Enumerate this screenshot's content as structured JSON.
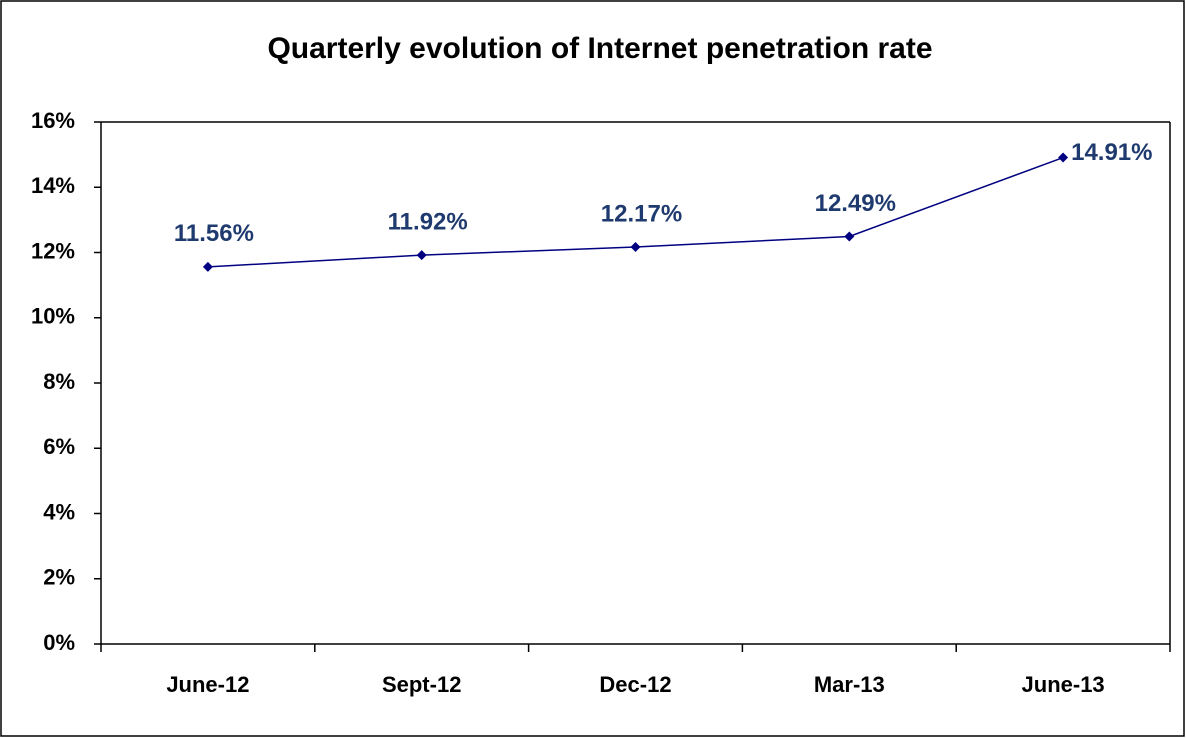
{
  "chart_data": {
    "type": "line",
    "title": "Quarterly evolution of Internet penetration rate",
    "categories": [
      "June-12",
      "Sept-12",
      "Dec-12",
      "Mar-13",
      "June-13"
    ],
    "series": [
      {
        "name": "Internet penetration rate",
        "color": "#000080",
        "values": [
          11.56,
          11.92,
          12.17,
          12.49,
          14.91
        ],
        "value_labels": [
          "11.56%",
          "11.92%",
          "12.17%",
          "12.49%",
          "14.91%"
        ]
      }
    ],
    "ylim": [
      0,
      16
    ],
    "yticks": [
      {
        "value": 0,
        "label": "0%"
      },
      {
        "value": 2,
        "label": "2%"
      },
      {
        "value": 4,
        "label": "4%"
      },
      {
        "value": 6,
        "label": "6%"
      },
      {
        "value": 8,
        "label": "8%"
      },
      {
        "value": 10,
        "label": "10%"
      },
      {
        "value": 12,
        "label": "12%"
      },
      {
        "value": 14,
        "label": "14%"
      },
      {
        "value": 16,
        "label": "16%"
      }
    ],
    "grid": false
  }
}
